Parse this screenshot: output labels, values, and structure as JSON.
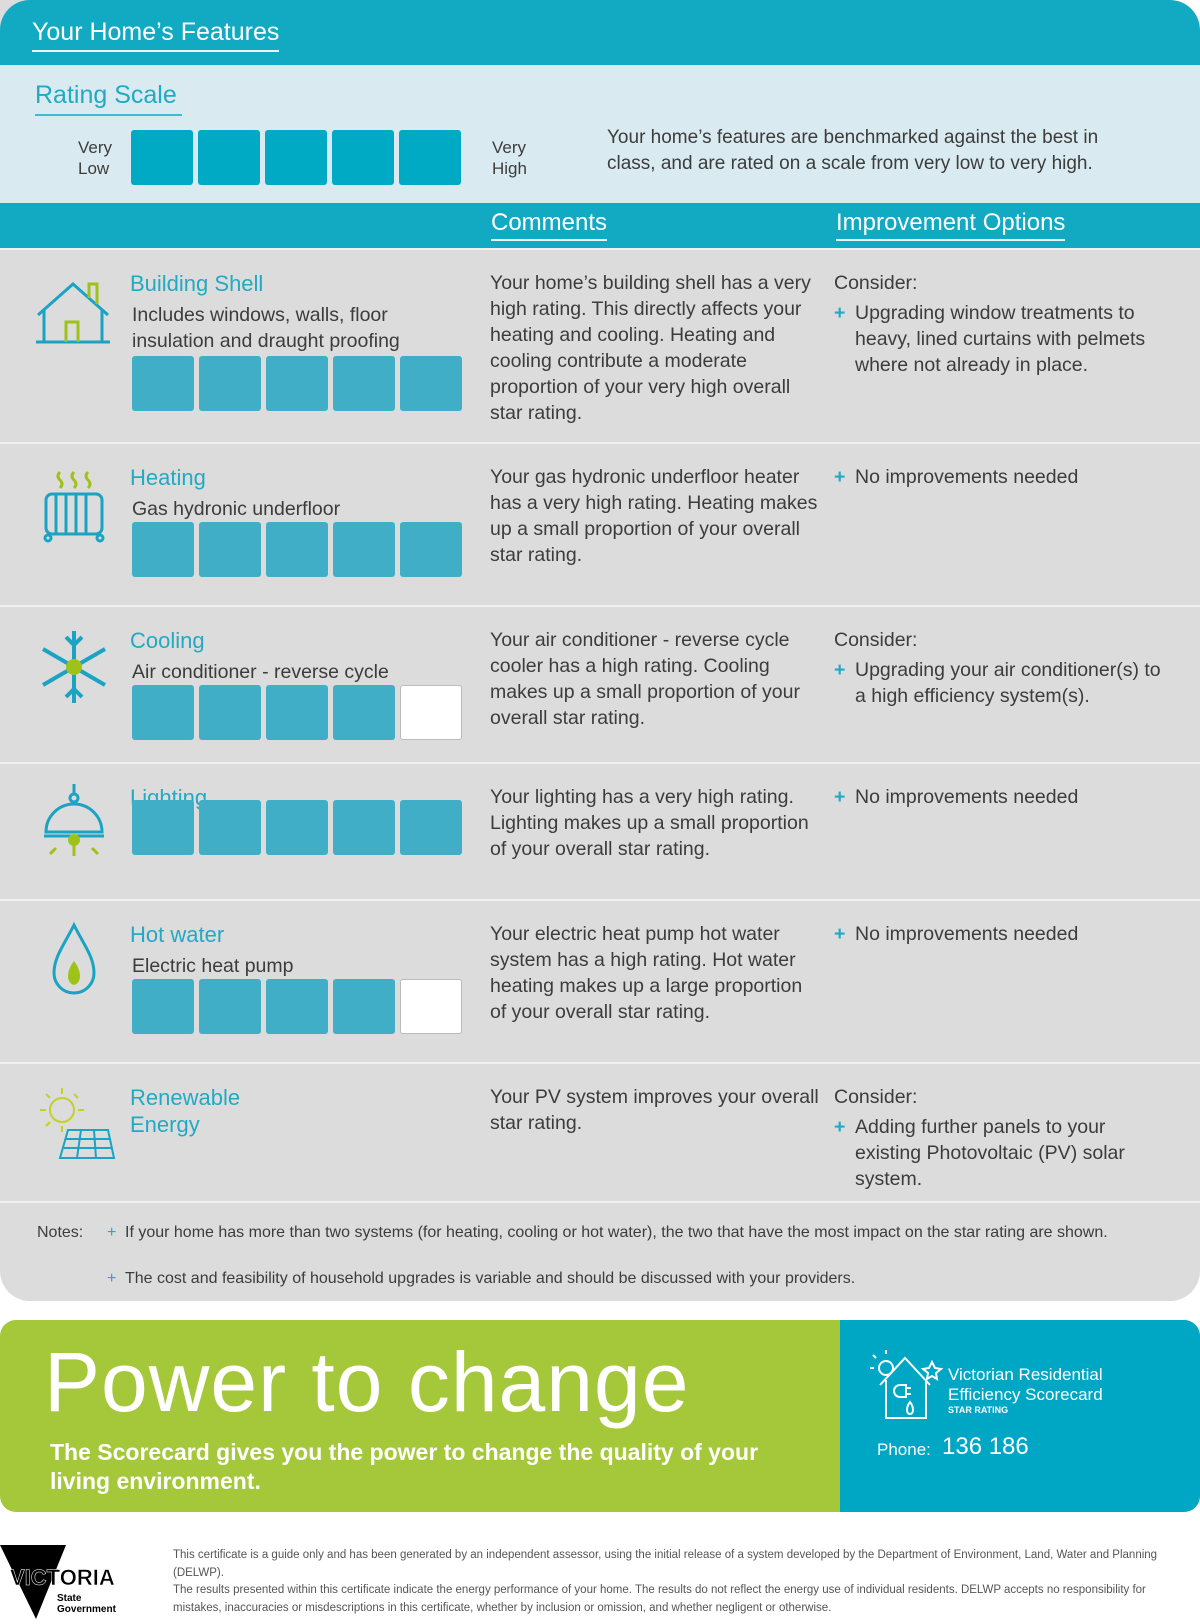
{
  "header": {
    "title": "Your Home’s Features"
  },
  "rating_scale": {
    "title": "Rating Scale",
    "low_label": "Very Low",
    "high_label": "Very High",
    "description": "Your home’s features are benchmarked against the best in class, and are rated on a scale from very low to very high."
  },
  "columns": {
    "comments": "Comments",
    "improvement": "Improvement Options"
  },
  "features": [
    {
      "name": "Building Shell",
      "sub": "Includes windows, walls, floor insulation and draught proofing",
      "rating": 5,
      "comment": "Your home’s building shell has a very high rating. This directly affects your heating and cooling. Heating and cooling contribute a moderate proportion of your very high overall star rating.",
      "consider": "Consider:",
      "improvement": "Upgrading window treatments to heavy, lined curtains with pelmets where not already in place.",
      "icon": "house-icon"
    },
    {
      "name": "Heating",
      "sub": "Gas hydronic underfloor",
      "rating": 5,
      "comment": "Your gas hydronic underfloor heater has a very high rating. Heating makes up a small proportion of your overall star rating.",
      "improvement": "No improvements needed",
      "icon": "radiator-icon"
    },
    {
      "name": "Cooling",
      "sub": "Air conditioner - reverse cycle",
      "rating": 4,
      "comment": "Your air conditioner - reverse cycle cooler has a high rating. Cooling makes up a small proportion of your overall star rating.",
      "consider": "Consider:",
      "improvement": "Upgrading your air conditioner(s) to a high efficiency system(s).",
      "icon": "snowflake-icon"
    },
    {
      "name": "Lighting",
      "rating": 5,
      "comment": "Your lighting has a very high rating. Lighting makes up a small proportion of your overall star rating.",
      "improvement": "No improvements needed",
      "icon": "lamp-icon"
    },
    {
      "name": "Hot water",
      "sub": "Electric heat pump",
      "rating": 4,
      "comment": "Your electric heat pump hot water system has a high rating. Hot water heating makes up a large proportion of your overall star rating.",
      "improvement": "No improvements needed",
      "icon": "water-drop-icon"
    },
    {
      "name": "Renewable Energy",
      "comment": "Your PV system improves your overall star rating.",
      "consider": "Consider:",
      "improvement": "Adding further panels to your existing Photovoltaic (PV) solar system.",
      "icon": "solar-panel-icon"
    }
  ],
  "notes": {
    "label": "Notes:",
    "items": [
      "If your home has more than two systems (for heating, cooling or hot water), the two that have the most impact on the star rating are shown.",
      "The cost and feasibility of household upgrades is variable and should be discussed with your providers."
    ]
  },
  "banner": {
    "headline": "Power to change",
    "tagline": "The Scorecard gives you the power to change the quality of your living environment.",
    "brand_line1": "Victorian Residential",
    "brand_line2": "Efficiency Scorecard",
    "brand_sub": "STAR RATING",
    "phone_label": "Phone:",
    "phone": "136 186"
  },
  "footer": {
    "logo_text": "VICTORIA",
    "logo_sub1": "State",
    "logo_sub2": "Government",
    "line1": "This certificate is a guide only and has been generated by an independent assessor, using the initial release of a system developed by the Department of Environment, Land, Water and Planning (DELWP).",
    "line2": "The results presented within this certificate indicate the energy performance of your home. The results do not reflect the energy use of individual residents. DELWP accepts no responsibility for mistakes, inaccuracies or misdescriptions in this certificate, whether by inclusion or omission, and whether negligent or otherwise."
  },
  "colors": {
    "teal": "#12a9c2",
    "green": "#a5c83a",
    "blue": "#00a7c4"
  }
}
